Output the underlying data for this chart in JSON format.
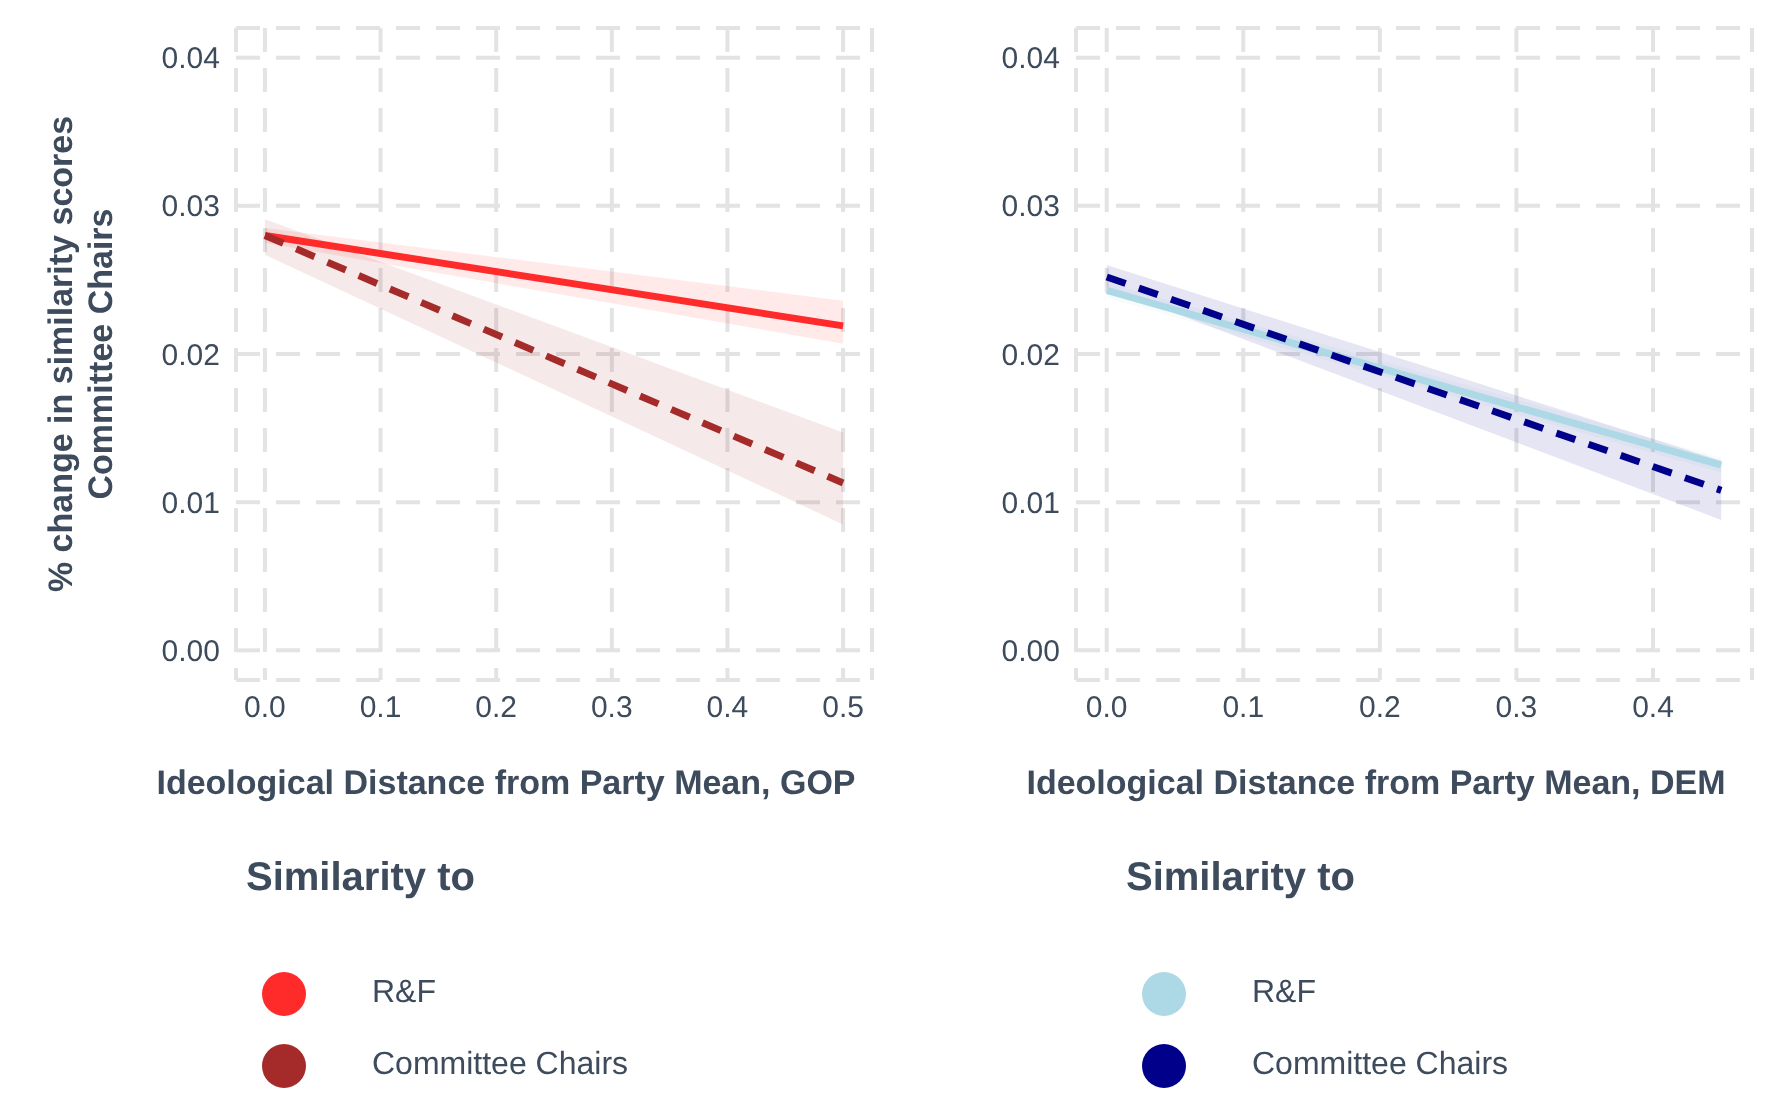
{
  "chart_data": [
    {
      "type": "line",
      "xlabel": "Ideological Distance from Party Mean, GOP",
      "ylabel": "% change in similarity scores\nCommittee Chairs",
      "legend_title": "Similarity to",
      "legend": "bottom",
      "grid": true,
      "xlim": [
        -0.025,
        0.525
      ],
      "xticks": [
        {
          "value": 0,
          "label": "0.0"
        },
        0.1,
        0.2,
        0.3,
        0.4,
        0.5
      ],
      "ylim": [
        -0.002,
        0.042
      ],
      "yticks": [
        {
          "value": 0,
          "label": "0.00"
        },
        {
          "value": 0.01,
          "label": "0.01"
        },
        {
          "value": 0.02,
          "label": "0.02"
        },
        {
          "value": 0.03,
          "label": "0.03"
        },
        {
          "value": 0.04,
          "label": "0.04"
        }
      ],
      "series": [
        {
          "name": "R&F",
          "color": "#ff2a2a",
          "line_style": "solid",
          "x": [
            0,
            0.5
          ],
          "values": [
            0.028,
            0.0219
          ],
          "lower": [
            0.0275,
            0.0207
          ],
          "upper": [
            0.0285,
            0.0236
          ]
        },
        {
          "name": "Committee Chairs",
          "color": "#a52a2a",
          "line_style": "dashed",
          "x": [
            0,
            0.5
          ],
          "values": [
            0.028,
            0.0113
          ],
          "lower": [
            0.0267,
            0.0085
          ],
          "upper": [
            0.0291,
            0.0147
          ]
        }
      ]
    },
    {
      "type": "line",
      "xlabel": "Ideological Distance from Party Mean, DEM",
      "legend_title": "Similarity to",
      "legend": "bottom",
      "grid": true,
      "xlim": [
        -0.0225,
        0.4725
      ],
      "xticks": [
        {
          "value": 0,
          "label": "0.0"
        },
        0.1,
        0.2,
        0.3,
        0.4
      ],
      "ylim": [
        -0.002,
        0.042
      ],
      "yticks": [
        {
          "value": 0,
          "label": "0.00"
        },
        {
          "value": 0.01,
          "label": "0.01"
        },
        {
          "value": 0.02,
          "label": "0.02"
        },
        {
          "value": 0.03,
          "label": "0.03"
        },
        {
          "value": 0.04,
          "label": "0.04"
        }
      ],
      "series": [
        {
          "name": "R&F",
          "color": "#add8e6",
          "line_style": "solid",
          "x": [
            0,
            0.45
          ],
          "values": [
            0.0243,
            0.0125
          ],
          "lower": [
            0.0238,
            0.012
          ],
          "upper": [
            0.0248,
            0.013
          ]
        },
        {
          "name": "Committee Chairs",
          "color": "#00008b",
          "line_style": "dashed",
          "x": [
            0,
            0.45
          ],
          "values": [
            0.0252,
            0.0108
          ],
          "lower": [
            0.0245,
            0.0088
          ],
          "upper": [
            0.026,
            0.0128
          ]
        }
      ]
    }
  ]
}
